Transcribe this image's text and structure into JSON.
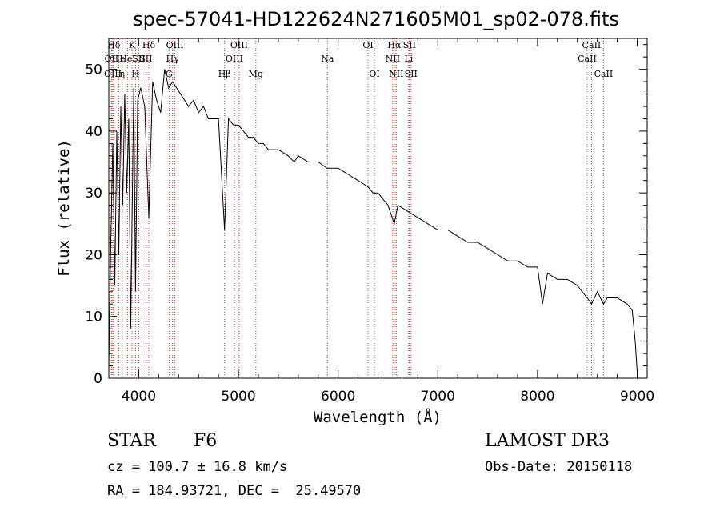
{
  "chart_data": {
    "type": "line",
    "title": "spec-57041-HD122624N271605M01_sp02-078.fits",
    "xlabel": "Wavelength (Å)",
    "ylabel": "Flux (relative)",
    "xlim": [
      3700,
      9100
    ],
    "ylim": [
      0,
      55
    ],
    "xticks": [
      4000,
      5000,
      6000,
      7000,
      8000,
      9000
    ],
    "yticks": [
      0,
      10,
      20,
      30,
      40,
      50
    ],
    "grid": false,
    "series": [
      {
        "name": "spectrum",
        "x": [
          3700,
          3720,
          3740,
          3760,
          3780,
          3800,
          3820,
          3840,
          3860,
          3880,
          3900,
          3920,
          3933,
          3950,
          3968,
          3990,
          4020,
          4060,
          4101,
          4140,
          4180,
          4220,
          4260,
          4300,
          4340,
          4380,
          4420,
          4460,
          4500,
          4550,
          4600,
          4650,
          4700,
          4750,
          4800,
          4861,
          4900,
          4950,
          5000,
          5050,
          5100,
          5150,
          5200,
          5250,
          5300,
          5400,
          5500,
          5560,
          5600,
          5700,
          5800,
          5890,
          5950,
          6000,
          6100,
          6200,
          6300,
          6350,
          6400,
          6450,
          6500,
          6563,
          6600,
          6700,
          6800,
          6900,
          7000,
          7100,
          7200,
          7300,
          7400,
          7500,
          7600,
          7700,
          7800,
          7900,
          8000,
          8050,
          8100,
          8200,
          8300,
          8400,
          8498,
          8542,
          8600,
          8662,
          8700,
          8800,
          8900,
          8950,
          8980,
          9000
        ],
        "y": [
          2,
          22,
          38,
          15,
          40,
          20,
          44,
          28,
          46,
          30,
          42,
          8,
          25,
          47,
          14,
          45,
          47,
          44,
          26,
          48,
          45,
          43,
          50,
          47,
          48,
          47,
          46,
          45,
          44,
          45,
          43,
          44,
          42,
          42,
          42,
          24,
          42,
          41,
          41,
          40,
          39,
          39,
          38,
          38,
          37,
          37,
          36,
          35,
          36,
          35,
          35,
          34,
          34,
          34,
          33,
          32,
          31,
          30,
          30,
          29,
          28,
          25,
          28,
          27,
          26,
          25,
          24,
          24,
          23,
          22,
          22,
          21,
          20,
          19,
          19,
          18,
          18,
          12,
          17,
          16,
          16,
          15,
          13,
          12,
          14,
          12,
          13,
          13,
          12,
          11,
          6,
          1
        ]
      }
    ],
    "line_markers": [
      {
        "label": "Hδ",
        "x": 3750,
        "row": 1
      },
      {
        "label": "OII",
        "x": 3727,
        "row": 2
      },
      {
        "label": "OIII",
        "x": 3740,
        "row": 3
      },
      {
        "label": "He",
        "x": 3800,
        "row": 2
      },
      {
        "label": "η",
        "x": 3835,
        "row": 3
      },
      {
        "label": "K",
        "x": 3933,
        "row": 1
      },
      {
        "label": "HeI",
        "x": 3889,
        "row": 2
      },
      {
        "label": "SII",
        "x": 4000,
        "row": 2
      },
      {
        "label": "H",
        "x": 3968,
        "row": 3
      },
      {
        "label": "Hδ",
        "x": 4101,
        "row": 1
      },
      {
        "label": "SII",
        "x": 4072,
        "row": 2
      },
      {
        "label": "OIII",
        "x": 4363,
        "row": 1
      },
      {
        "label": "Hγ",
        "x": 4340,
        "row": 2
      },
      {
        "label": "G",
        "x": 4304,
        "row": 3
      },
      {
        "label": "Hβ",
        "x": 4861,
        "row": 3
      },
      {
        "label": "OIII",
        "x": 4959,
        "row": 2
      },
      {
        "label": "OIII",
        "x": 5007,
        "row": 1
      },
      {
        "label": "Mg",
        "x": 5175,
        "row": 3
      },
      {
        "label": "Na",
        "x": 5893,
        "row": 2
      },
      {
        "label": "OI",
        "x": 6300,
        "row": 1
      },
      {
        "label": "OI",
        "x": 6364,
        "row": 3
      },
      {
        "label": "Hα",
        "x": 6563,
        "row": 1
      },
      {
        "label": "NII",
        "x": 6548,
        "row": 2
      },
      {
        "label": "NII",
        "x": 6583,
        "row": 3
      },
      {
        "label": "SII",
        "x": 6716,
        "row": 1
      },
      {
        "label": "Li",
        "x": 6708,
        "row": 2
      },
      {
        "label": "SII",
        "x": 6731,
        "row": 3
      },
      {
        "label": "CaII",
        "x": 8542,
        "row": 1
      },
      {
        "label": "CaII",
        "x": 8498,
        "row": 2
      },
      {
        "label": "CaII",
        "x": 8662,
        "row": 3
      }
    ]
  },
  "info": {
    "object_class": "STAR",
    "subclass": "F6",
    "survey": "LAMOST DR3",
    "cz": "cz = 100.7 ± 16.8 km/s",
    "obs_date": "Obs-Date: 20150118",
    "coords": "RA = 184.93721, DEC =  25.49570"
  },
  "colors": {
    "axis": "#000000",
    "spectrum": "#000000",
    "marker": "#c0392b"
  }
}
